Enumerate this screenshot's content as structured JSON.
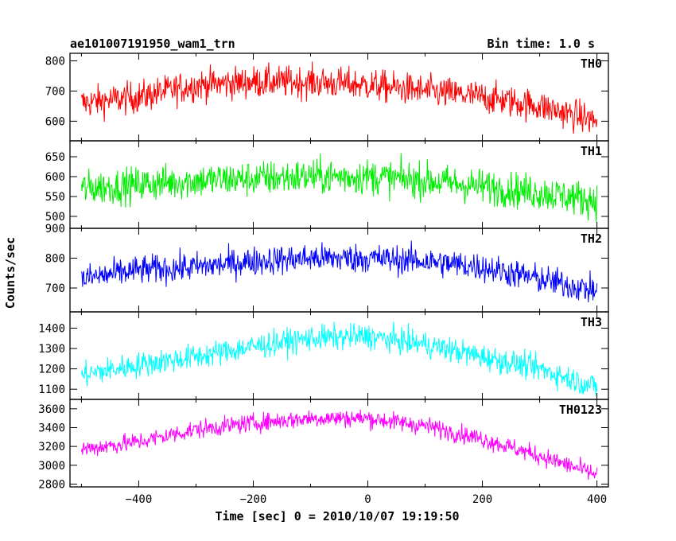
{
  "header": {
    "left_title": "ae101007191950_wam1_trn",
    "right_title": "Bin time: 1.0 s"
  },
  "chart_data": {
    "type": "line",
    "title": "ae101007191950_wam1_trn",
    "subtitle": "Bin time: 1.0 s",
    "xlabel": "Time [sec] 0 = 2010/10/07 19:19:50",
    "ylabel": "Counts/sec",
    "xlim": [
      -520,
      420
    ],
    "x_ticks": [
      -400,
      -200,
      0,
      200,
      400
    ],
    "x_tick_labels": [
      "−400",
      "−200",
      "0",
      "200",
      "400"
    ],
    "x_start": -500,
    "x_end": 400,
    "grid": false,
    "legend": "none",
    "panels": [
      {
        "name": "TH0",
        "color": "#ff0000",
        "ylim": [
          535,
          825
        ],
        "y_ticks": [
          600,
          700,
          800
        ],
        "y_tick_labels": [
          "600",
          "700",
          "800"
        ],
        "trend": [
          [
            -500,
            660
          ],
          [
            -400,
            680
          ],
          [
            -300,
            720
          ],
          [
            -200,
            730
          ],
          [
            -100,
            730
          ],
          [
            0,
            720
          ],
          [
            100,
            700
          ],
          [
            200,
            680
          ],
          [
            300,
            650
          ],
          [
            400,
            600
          ]
        ],
        "noise": 38
      },
      {
        "name": "TH1",
        "color": "#00ee00",
        "ylim": [
          470,
          690
        ],
        "y_ticks": [
          500,
          550,
          600,
          650
        ],
        "y_tick_labels": [
          "500",
          "550",
          "600",
          "650"
        ],
        "trend": [
          [
            -500,
            570
          ],
          [
            -400,
            580
          ],
          [
            -300,
            590
          ],
          [
            -200,
            595
          ],
          [
            -100,
            600
          ],
          [
            0,
            600
          ],
          [
            100,
            590
          ],
          [
            200,
            575
          ],
          [
            300,
            560
          ],
          [
            400,
            540
          ]
        ],
        "noise": 32
      },
      {
        "name": "TH2",
        "color": "#0000ff",
        "ylim": [
          620,
          900
        ],
        "y_ticks": [
          700,
          800,
          900
        ],
        "y_tick_labels": [
          "700",
          "800",
          "900"
        ],
        "trend": [
          [
            -500,
            730
          ],
          [
            -400,
            760
          ],
          [
            -300,
            770
          ],
          [
            -200,
            790
          ],
          [
            -100,
            800
          ],
          [
            0,
            800
          ],
          [
            100,
            790
          ],
          [
            200,
            770
          ],
          [
            300,
            730
          ],
          [
            400,
            690
          ]
        ],
        "noise": 35
      },
      {
        "name": "TH3",
        "color": "#00ffff",
        "ylim": [
          1050,
          1480
        ],
        "y_ticks": [
          1100,
          1200,
          1300,
          1400
        ],
        "y_tick_labels": [
          "1100",
          "1200",
          "1300",
          "1400"
        ],
        "trend": [
          [
            -500,
            1170
          ],
          [
            -400,
            1220
          ],
          [
            -300,
            1260
          ],
          [
            -200,
            1310
          ],
          [
            -100,
            1350
          ],
          [
            0,
            1360
          ],
          [
            100,
            1320
          ],
          [
            200,
            1260
          ],
          [
            300,
            1200
          ],
          [
            400,
            1110
          ]
        ],
        "noise": 45
      },
      {
        "name": "TH0123",
        "color": "#ff00ff",
        "ylim": [
          2770,
          3700
        ],
        "y_ticks": [
          2800,
          3000,
          3200,
          3400,
          3600
        ],
        "y_tick_labels": [
          "2800",
          "3000",
          "3200",
          "3400",
          "3600"
        ],
        "trend": [
          [
            -500,
            3170
          ],
          [
            -400,
            3250
          ],
          [
            -300,
            3380
          ],
          [
            -200,
            3450
          ],
          [
            -100,
            3500
          ],
          [
            0,
            3500
          ],
          [
            100,
            3420
          ],
          [
            200,
            3280
          ],
          [
            300,
            3100
          ],
          [
            400,
            2900
          ]
        ],
        "noise": 70
      }
    ]
  }
}
